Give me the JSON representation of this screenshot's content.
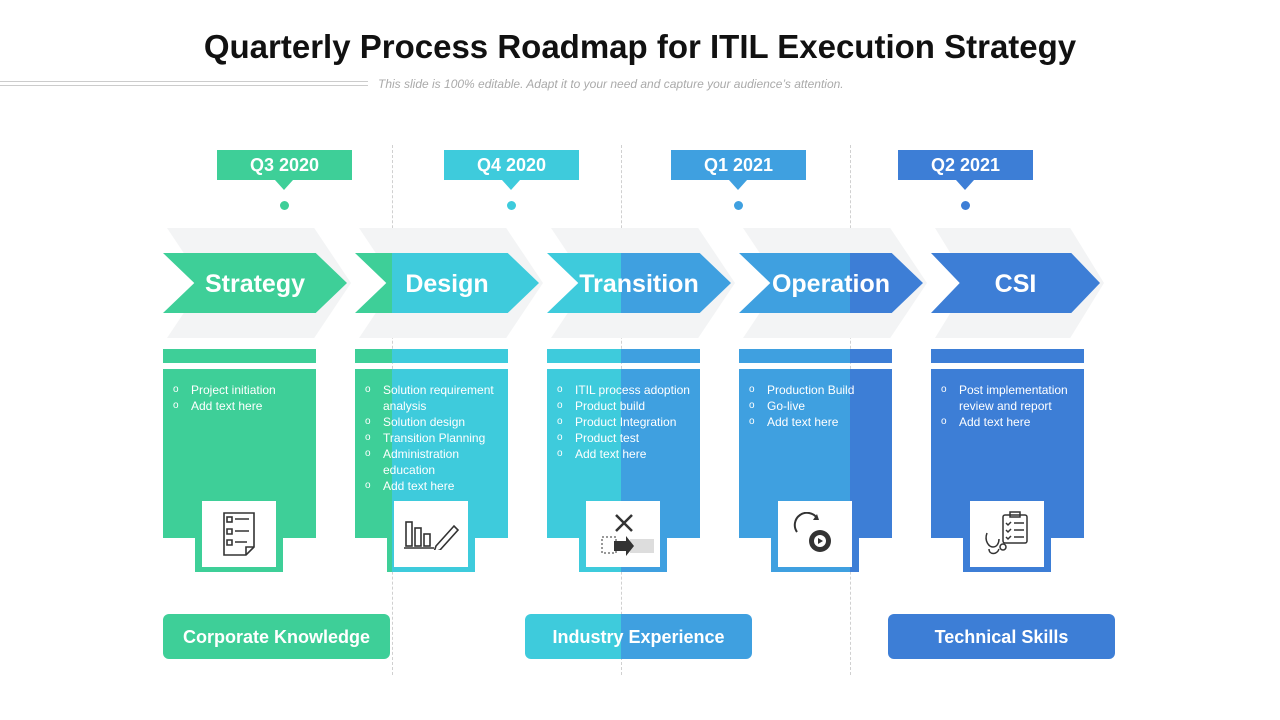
{
  "title": "Quarterly Process Roadmap for ITIL Execution Strategy",
  "subtitle": "This slide is 100% editable. Adapt it to your need and capture your audience’s attention.",
  "colors": {
    "green": "#3ecf98",
    "cyan": "#3ecbdc",
    "mid_blue": "#3fa0e0",
    "blue": "#3d7ed6"
  },
  "quarters": [
    "Q3 2020",
    "Q4 2020",
    "Q1 2021",
    "Q2 2021"
  ],
  "stages": [
    {
      "label": "Strategy",
      "items": [
        "Project initiation",
        "Add text here"
      ],
      "icon": "checklist-icon"
    },
    {
      "label": "Design",
      "items": [
        "Solution requirement analysis",
        "Solution design",
        "Transition Planning",
        "Administration education",
        "Add text here"
      ],
      "icon": "chart-pencil-icon"
    },
    {
      "label": "Transition",
      "items": [
        "ITIL process adoption",
        "Product build",
        "Product Integration",
        "Product test",
        "Add text here"
      ],
      "icon": "tools-transfer-icon"
    },
    {
      "label": "Operation",
      "items": [
        "Production Build",
        "Go-live",
        "Add text here"
      ],
      "icon": "gear-cycle-icon"
    },
    {
      "label": "CSI",
      "items": [
        "Post implementation review and report",
        "Add text here"
      ],
      "icon": "clipboard-stethoscope-icon"
    }
  ],
  "pills": [
    "Corporate Knowledge",
    "Industry Experience",
    "Technical Skills"
  ]
}
